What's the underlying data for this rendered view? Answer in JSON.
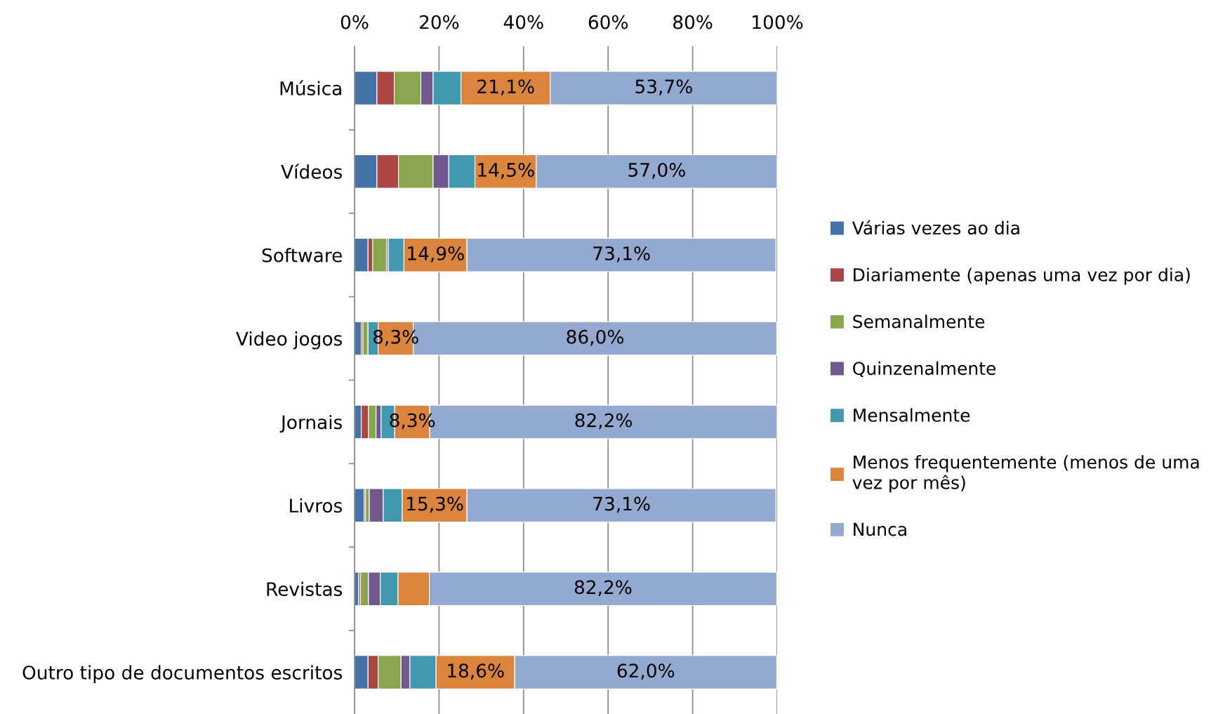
{
  "chart_data": {
    "type": "bar",
    "orientation": "horizontal",
    "stacked": true,
    "categories": [
      "Música",
      "Vídeos",
      "Software",
      "Video jogos",
      "Jornais",
      "Livros",
      "Revistas",
      "Outro tipo de documentos escritos"
    ],
    "series": [
      {
        "name": "Várias vezes ao dia",
        "color": "#4572a7",
        "values": [
          5.3,
          5.3,
          3.2,
          1.6,
          1.6,
          2.3,
          1.0,
          3.2
        ]
      },
      {
        "name": "Diariamente (apenas uma vez por dia)",
        "color": "#aa4643",
        "values": [
          4.1,
          5.1,
          1.1,
          0.4,
          1.7,
          0.3,
          0.4,
          2.4
        ]
      },
      {
        "name": "Semanalmente",
        "color": "#89a54e",
        "values": [
          6.3,
          8.2,
          3.3,
          1.2,
          1.8,
          0.9,
          1.9,
          5.4
        ]
      },
      {
        "name": "Quinzenalmente",
        "color": "#71588f",
        "values": [
          2.9,
          3.7,
          0.4,
          null,
          1.2,
          3.3,
          2.8,
          2.1
        ]
      },
      {
        "name": "Mensalmente",
        "color": "#4198af",
        "values": [
          6.6,
          6.2,
          3.7,
          2.4,
          3.2,
          4.5,
          4.2,
          6.2
        ]
      },
      {
        "name": "Menos frequentemente (menos de uma\nvez por mês)",
        "color": "#db843d",
        "values": [
          21.1,
          14.5,
          14.9,
          8.3,
          8.3,
          15.3,
          7.4,
          18.6
        ],
        "value_labels": [
          "21,1%",
          "14,5%",
          "14,9%",
          "8,3%",
          "8,3%",
          "15,3%",
          null,
          "18,6%"
        ]
      },
      {
        "name": "Nunca",
        "color": "#93a9cf",
        "values": [
          53.7,
          57.0,
          73.1,
          86.0,
          82.2,
          73.1,
          82.2,
          62.0
        ],
        "value_labels": [
          "53,7%",
          "57,0%",
          "73,1%",
          "86,0%",
          "82,2%",
          "73,1%",
          "82,2%",
          "62,0%"
        ]
      }
    ],
    "xlim": [
      0,
      100
    ],
    "xticks": [
      {
        "value": 0,
        "label": "0%"
      },
      {
        "value": 20,
        "label": "20%"
      },
      {
        "value": 40,
        "label": "40%"
      },
      {
        "value": 60,
        "label": "60%"
      },
      {
        "value": 80,
        "label": "80%"
      },
      {
        "value": 100,
        "label": "100%"
      }
    ],
    "grid": "x",
    "legend": "right"
  }
}
